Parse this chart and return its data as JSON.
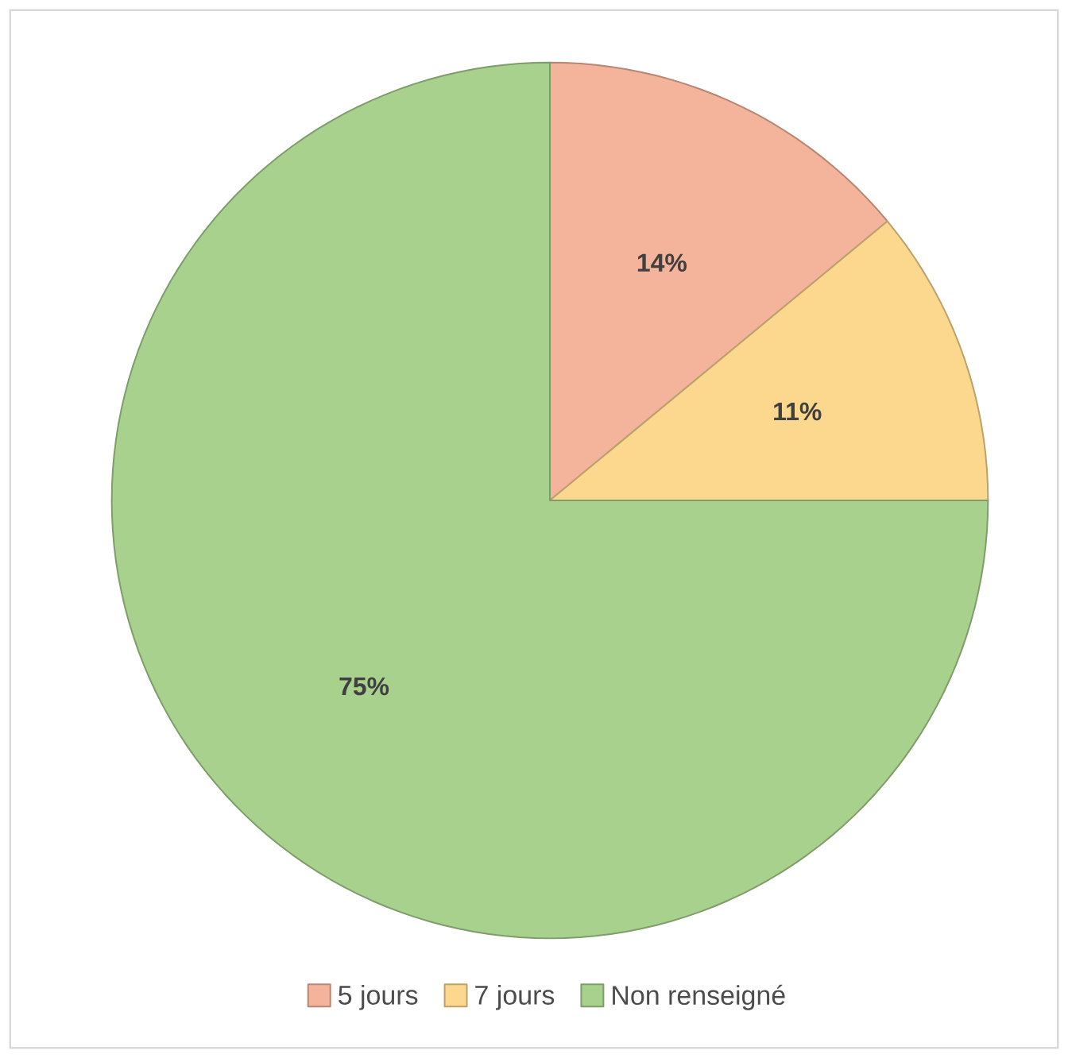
{
  "chart_data": {
    "type": "pie",
    "categories": [
      "5 jours",
      "7 jours",
      "Non renseigné"
    ],
    "values": [
      14,
      11,
      75
    ],
    "colors": [
      "#f4b39b",
      "#fbd88e",
      "#a9d18e"
    ],
    "value_labels": [
      "14%",
      "11%",
      "75%"
    ],
    "legend": "bottom"
  }
}
